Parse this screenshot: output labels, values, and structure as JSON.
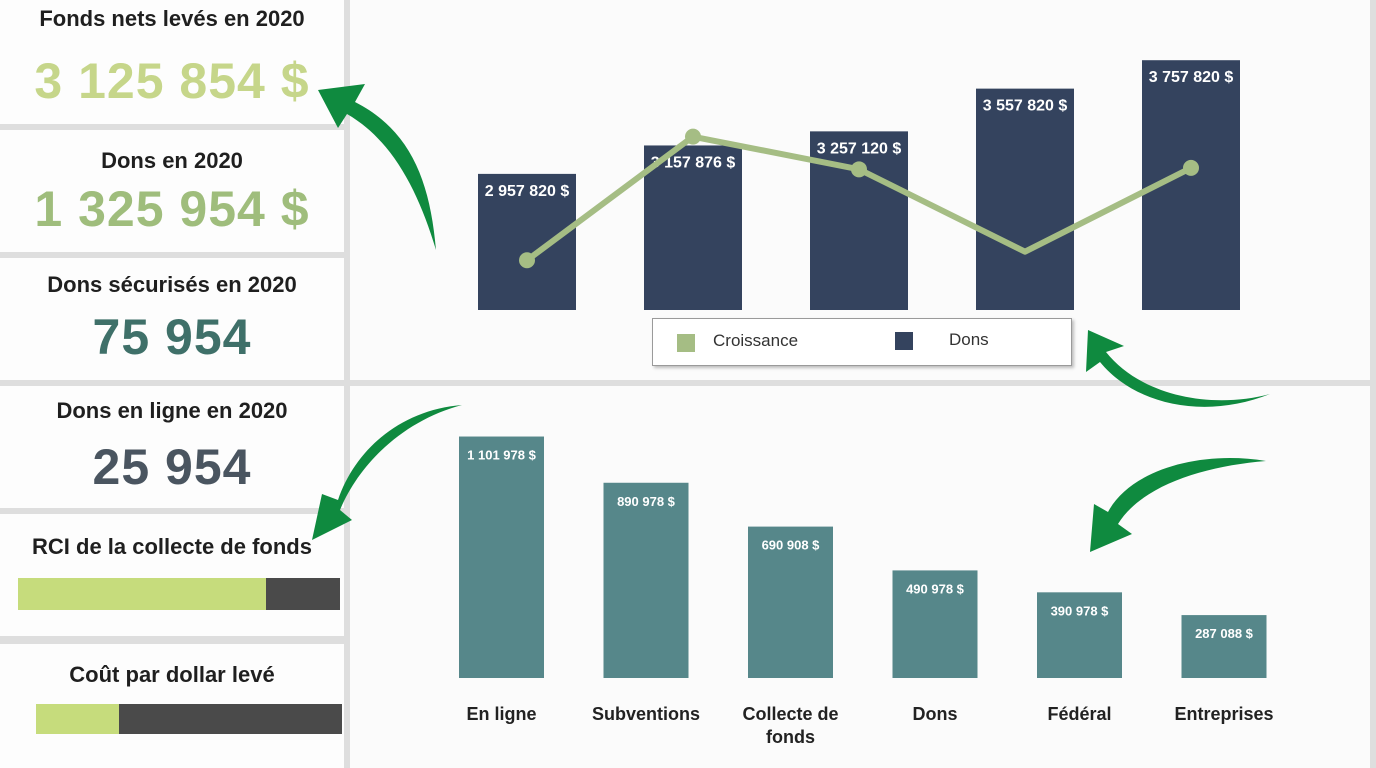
{
  "kpis": {
    "net_funds": {
      "title": "Fonds nets levés en 2020",
      "value": "3 125 854 $",
      "color": "#c6d68a"
    },
    "donations": {
      "title": "Dons en 2020",
      "value": "1 325 954 $",
      "color": "#9fbd7c"
    },
    "secured": {
      "title": "Dons sécurisés en 2020",
      "value": "75 954",
      "color": "#3f7069"
    },
    "online": {
      "title": "Dons en ligne en 2020",
      "value": "25 954",
      "color": "#4a5560"
    },
    "roi": {
      "title": "RCI de la collecte de fonds",
      "progress": 0.77
    },
    "cost": {
      "title": "Coût par dollar levé",
      "progress": 0.27
    }
  },
  "colors": {
    "navy": "#34435e",
    "line_green": "#a5bd84",
    "teal": "#56878a",
    "progress_green": "#c6dc7c",
    "progress_dark": "#4a4a4a",
    "arrow_green": "#0f8a3f"
  },
  "chart_data": [
    {
      "type": "bar",
      "categories": [
        "",
        "",
        "",
        "",
        ""
      ],
      "series": [
        {
          "name": "Dons",
          "type": "bar",
          "values": [
            2957820,
            3157876,
            3257120,
            3557820,
            3757820
          ]
        },
        {
          "name": "Croissance",
          "type": "line",
          "values": [
            2350000,
            3220000,
            2990000,
            2410000,
            3000000
          ]
        }
      ],
      "data_labels": [
        "2 957 820 $",
        "3 157 876 $",
        "3 257 120 $",
        "3 557 820 $",
        "3 757 820 $"
      ],
      "legend": [
        "Croissance",
        "Dons"
      ],
      "legend_position": "bottom",
      "ylim": [
        2000000,
        3900000
      ],
      "grid": false
    },
    {
      "type": "bar",
      "categories": [
        "En ligne",
        "Subventions",
        "Collecte de fonds",
        "Dons",
        "Fédéral",
        "Entreprises"
      ],
      "category_lines": [
        [
          "En ligne"
        ],
        [
          "Subventions"
        ],
        [
          "Collecte de",
          "fonds"
        ],
        [
          "Dons"
        ],
        [
          "Fédéral"
        ],
        [
          "Entreprises"
        ]
      ],
      "values": [
        1101978,
        890978,
        690908,
        490978,
        390978,
        287088
      ],
      "data_labels": [
        "1 101 978 $",
        "890 978 $",
        "690 908 $",
        "490 978 $",
        "390 978 $",
        "287 088 $"
      ],
      "ylim": [
        0,
        1150000
      ],
      "grid": false
    }
  ]
}
